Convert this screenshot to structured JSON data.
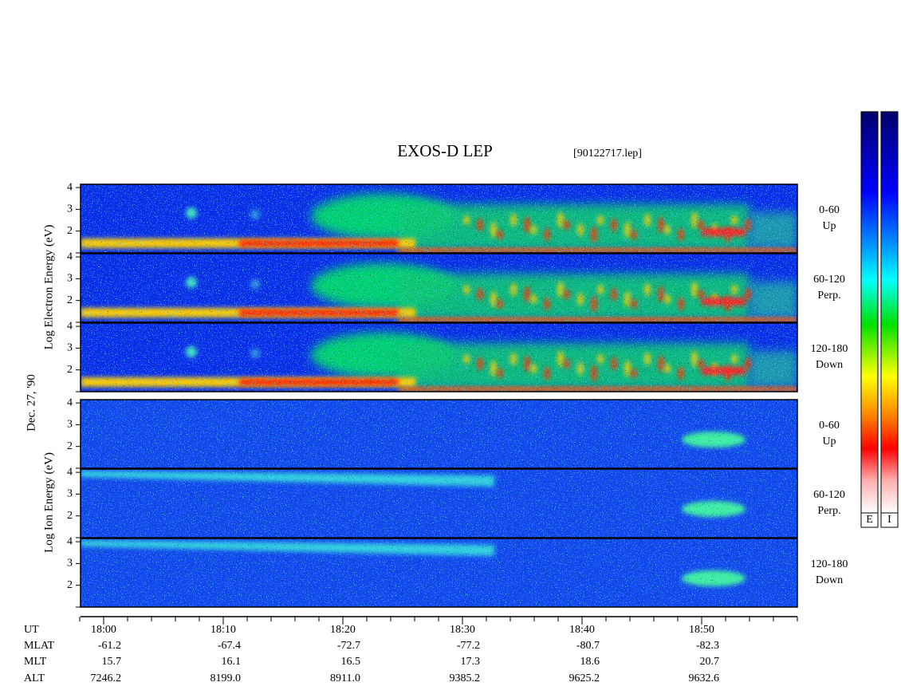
{
  "title": "EXOS-D LEP",
  "file": "[90122717.lep]",
  "date": "Dec. 27, '90",
  "electron_axis_label": "Log Electron Energy (eV)",
  "ion_axis_label": "Log Ion Energy (eV)",
  "energy_ylim": [
    1,
    4.15
  ],
  "energy_yticks": [
    2,
    3,
    4
  ],
  "panels": [
    {
      "species": "electron",
      "angle": "0-60",
      "direction": "Up"
    },
    {
      "species": "electron",
      "angle": "60-120",
      "direction": "Perp."
    },
    {
      "species": "electron",
      "angle": "120-180",
      "direction": "Down"
    },
    {
      "species": "ion",
      "angle": "0-60",
      "direction": "Up"
    },
    {
      "species": "ion",
      "angle": "60-120",
      "direction": "Perp."
    },
    {
      "species": "ion",
      "angle": "120-180",
      "direction": "Down"
    }
  ],
  "ephemeris": [
    {
      "label": "UT",
      "values": [
        "18:00",
        "18:10",
        "18:20",
        "18:30",
        "18:40",
        "18:50"
      ]
    },
    {
      "label": "MLAT",
      "values": [
        "-61.2",
        "-67.4",
        "-72.7",
        "-77.2",
        "-80.7",
        "-82.3"
      ]
    },
    {
      "label": "MLT",
      "values": [
        "15.7",
        "16.1",
        "16.5",
        "17.3",
        "18.6",
        "20.7"
      ]
    },
    {
      "label": "ALT",
      "values": [
        "7246.2",
        "8199.0",
        "8911.0",
        "9385.2",
        "9625.2",
        "9632.6"
      ]
    }
  ],
  "colorbars": [
    "E",
    "I"
  ]
}
